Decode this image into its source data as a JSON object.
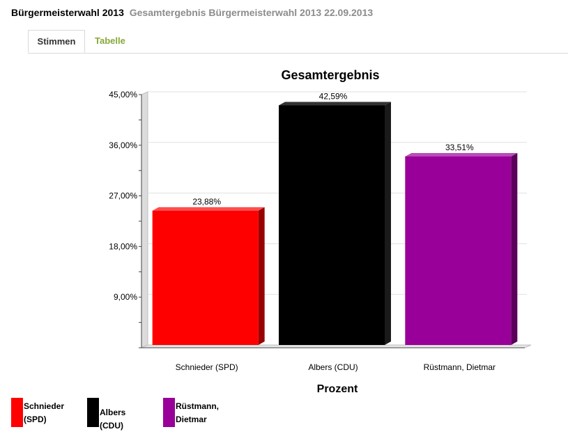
{
  "header": {
    "title": "Bürgermeisterwahl 2013",
    "subtitle": "Gesamtergebnis Bürgermeisterwahl 2013 22.09.2013"
  },
  "tabs": [
    {
      "label": "Stimmen",
      "active": true
    },
    {
      "label": "Tabelle",
      "active": false
    }
  ],
  "chart_data": {
    "type": "bar",
    "title": "Gesamtergebnis",
    "xlabel": "Prozent",
    "ylabel": "",
    "ylim": [
      0,
      45
    ],
    "yticks": [
      9,
      18,
      27,
      36,
      45
    ],
    "ytick_labels": [
      "9,00%",
      "18,00%",
      "27,00%",
      "36,00%",
      "45,00%"
    ],
    "categories": [
      "Schnieder (SPD)",
      "Albers (CDU)",
      "Rüstmann, Dietmar"
    ],
    "values": [
      23.88,
      42.59,
      33.51
    ],
    "value_labels": [
      "23,88%",
      "42,59%",
      "33,51%"
    ],
    "colors": [
      "#ff0000",
      "#000000",
      "#990099"
    ],
    "side_colors": [
      "#990000",
      "#1a1a1a",
      "#5c005c"
    ],
    "top_colors": [
      "#ff4d4d",
      "#333333",
      "#b84db8"
    ],
    "grid": true,
    "legend_position": "bottom-left"
  },
  "legend": {
    "items": [
      {
        "line1": "Schnieder",
        "line2": "(SPD)",
        "color": "#ff0000"
      },
      {
        "line1": "Albers (CDU)",
        "line2": "",
        "color": "#000000"
      },
      {
        "line1": "Rüstmann,",
        "line2": "Dietmar",
        "color": "#990099"
      }
    ]
  }
}
